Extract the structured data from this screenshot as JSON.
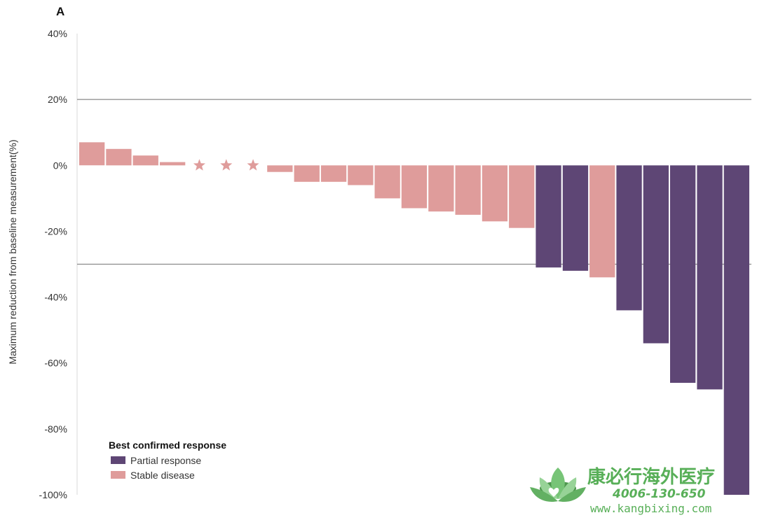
{
  "panel_label": "A",
  "chart_data": {
    "type": "bar",
    "title": "",
    "xlabel": "",
    "ylabel": "Maximum reduction from baseline measurement(%)",
    "ylim": [
      -100,
      40
    ],
    "yticks": [
      40,
      20,
      0,
      -20,
      -40,
      -60,
      -80,
      -100
    ],
    "ytick_labels": [
      "40%",
      "20%",
      "0%",
      "-20%",
      "-40%",
      "-60%",
      "-80%",
      "-100%"
    ],
    "reference_lines": [
      20,
      -30
    ],
    "grid": false,
    "series": [
      {
        "name": "Stable disease",
        "color": "#df9c9b",
        "values": [
          7,
          5,
          3,
          1,
          0,
          0,
          0,
          -2,
          -5,
          -5,
          -6,
          -10,
          -13,
          -14,
          -15,
          -17,
          -19,
          null,
          null,
          -34,
          null,
          null,
          null,
          null,
          null
        ]
      },
      {
        "name": "Partial response",
        "color": "#5e4675",
        "values": [
          null,
          null,
          null,
          null,
          null,
          null,
          null,
          null,
          null,
          null,
          null,
          null,
          null,
          null,
          null,
          null,
          null,
          -31,
          -32,
          null,
          -44,
          -54,
          -66,
          -68,
          -100
        ]
      }
    ],
    "markers": [
      {
        "index": 4,
        "symbol": "star",
        "value": 0
      },
      {
        "index": 5,
        "symbol": "star",
        "value": 0
      },
      {
        "index": 6,
        "symbol": "star",
        "value": 0
      }
    ],
    "legend": {
      "title": "Best confirmed response",
      "placement": "bottom-left",
      "entries": [
        {
          "label": "Partial response",
          "color": "#5e4675"
        },
        {
          "label": "Stable disease",
          "color": "#df9c9b"
        }
      ]
    }
  },
  "watermark": {
    "name": "康必行海外医疗",
    "phone": "4006-130-650",
    "url": "www.kangbixing.com",
    "color": "#4aa94a",
    "logo_icon": "lotus-logo-icon"
  }
}
